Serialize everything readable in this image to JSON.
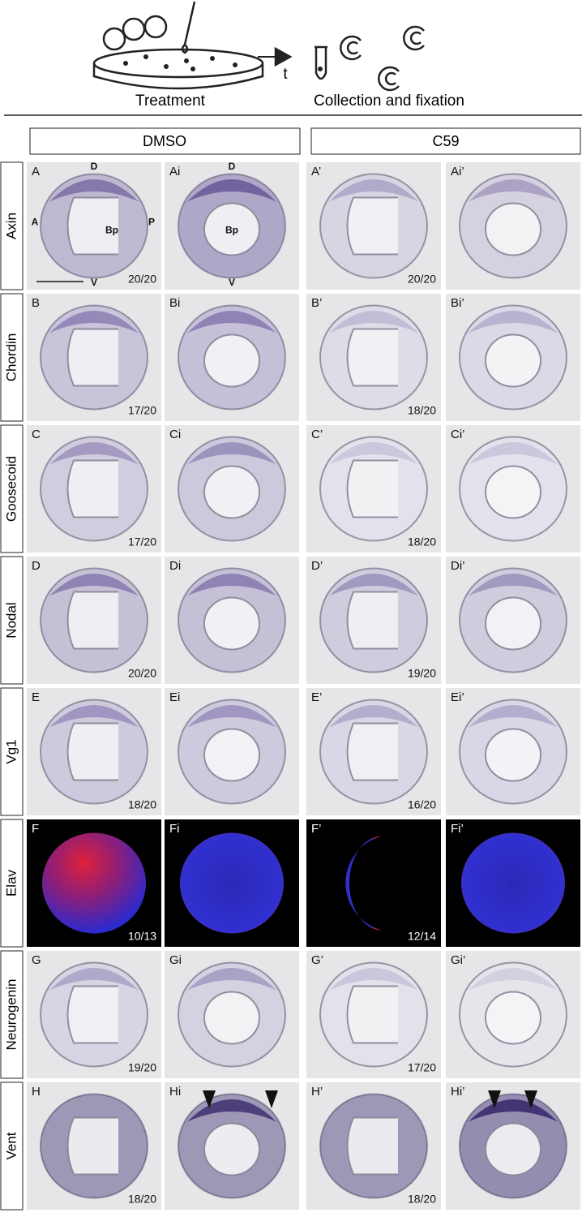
{
  "schematic": {
    "treatment": "Treatment",
    "time": "t",
    "collection": "Collection and fixation"
  },
  "conditions": [
    "DMSO",
    "C59"
  ],
  "rows": [
    {
      "gene": "Axin",
      "panels": [
        {
          "label": "A",
          "count": "20/20",
          "orientation": {
            "dorsal": "D",
            "anterior": "A",
            "posterior": "P",
            "blastopore": "Bp",
            "ventral": "V"
          }
        },
        {
          "label": "Ai",
          "orientation": {
            "dorsal": "D",
            "blastopore": "Bp",
            "ventral": "V"
          }
        },
        {
          "label": "A’",
          "count": "20/20"
        },
        {
          "label": "Ai’"
        }
      ]
    },
    {
      "gene": "Chordin",
      "panels": [
        {
          "label": "B",
          "count": "17/20"
        },
        {
          "label": "Bi"
        },
        {
          "label": "B’",
          "count": "18/20"
        },
        {
          "label": "Bi’"
        }
      ]
    },
    {
      "gene": "Goosecoid",
      "panels": [
        {
          "label": "C",
          "count": "17/20"
        },
        {
          "label": "Ci"
        },
        {
          "label": "C’",
          "count": "18/20"
        },
        {
          "label": "Ci’"
        }
      ]
    },
    {
      "gene": "Nodal",
      "panels": [
        {
          "label": "D",
          "count": "20/20"
        },
        {
          "label": "Di"
        },
        {
          "label": "D’",
          "count": "19/20"
        },
        {
          "label": "Di’"
        }
      ]
    },
    {
      "gene": "Vg1",
      "panels": [
        {
          "label": "E",
          "count": "18/20"
        },
        {
          "label": "Ei"
        },
        {
          "label": "E’",
          "count": "16/20"
        },
        {
          "label": "Ei’"
        }
      ]
    },
    {
      "gene": "Elav",
      "panels": [
        {
          "label": "F",
          "count": "10/13"
        },
        {
          "label": "Fi"
        },
        {
          "label": "F’",
          "count": "12/14"
        },
        {
          "label": "Fi’"
        }
      ]
    },
    {
      "gene": "Neurogenin",
      "panels": [
        {
          "label": "G",
          "count": "19/20"
        },
        {
          "label": "Gi"
        },
        {
          "label": "G’",
          "count": "17/20"
        },
        {
          "label": "Gi’"
        }
      ]
    },
    {
      "gene": "Vent",
      "panels": [
        {
          "label": "H",
          "count": "18/20"
        },
        {
          "label": "Hi"
        },
        {
          "label": "H’",
          "count": "18/20"
        },
        {
          "label": "Hi’"
        }
      ]
    }
  ]
}
